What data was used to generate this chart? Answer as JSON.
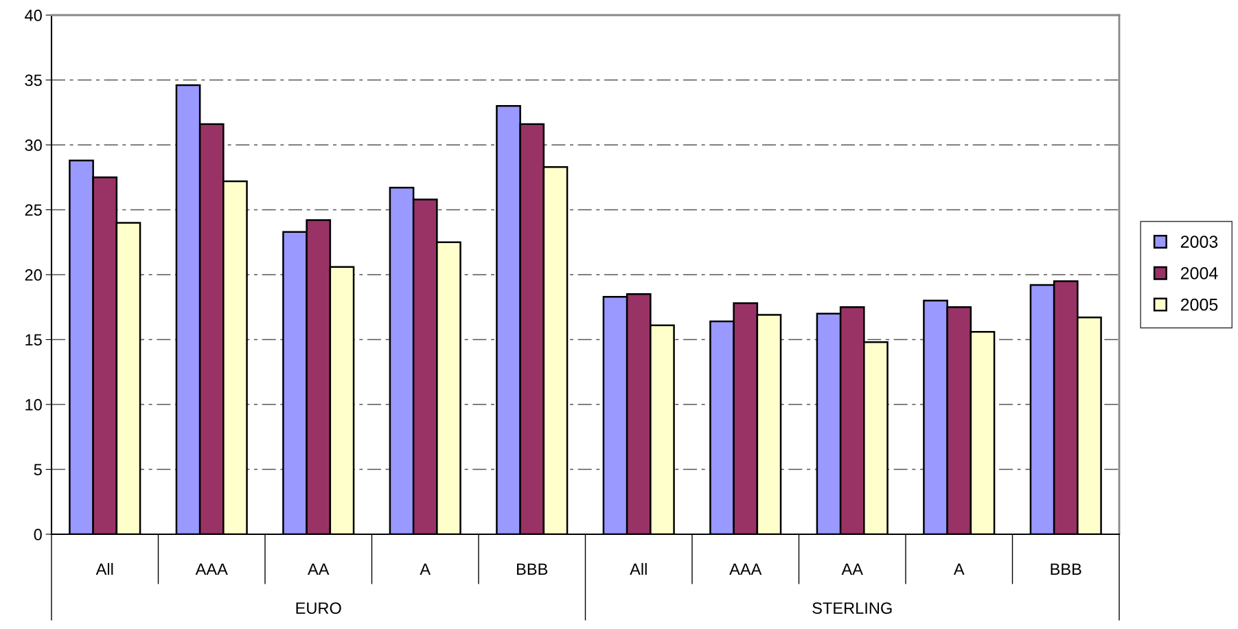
{
  "chart_data": {
    "type": "bar",
    "categories": [
      "All",
      "AAA",
      "AA",
      "A",
      "BBB",
      "All",
      "AAA",
      "AA",
      "A",
      "BBB"
    ],
    "series": [
      {
        "name": "2003",
        "color": "#9999ff",
        "values": [
          28.8,
          34.6,
          23.3,
          26.7,
          33.0,
          18.3,
          16.4,
          17.0,
          18.0,
          19.2
        ]
      },
      {
        "name": "2004",
        "color": "#993366",
        "values": [
          27.5,
          31.6,
          24.2,
          25.8,
          31.6,
          18.5,
          17.8,
          17.5,
          17.5,
          19.5
        ]
      },
      {
        "name": "2005",
        "color": "#ffffcc",
        "values": [
          24.0,
          27.2,
          20.6,
          22.5,
          28.3,
          16.1,
          16.9,
          14.8,
          15.6,
          16.7
        ]
      }
    ],
    "annotations": [
      "EURO",
      "STERLING"
    ],
    "ylim": [
      0,
      40
    ],
    "yticks": [
      0,
      5,
      10,
      15,
      20,
      25,
      30,
      35,
      40
    ],
    "grid": "y",
    "legend": "right"
  }
}
